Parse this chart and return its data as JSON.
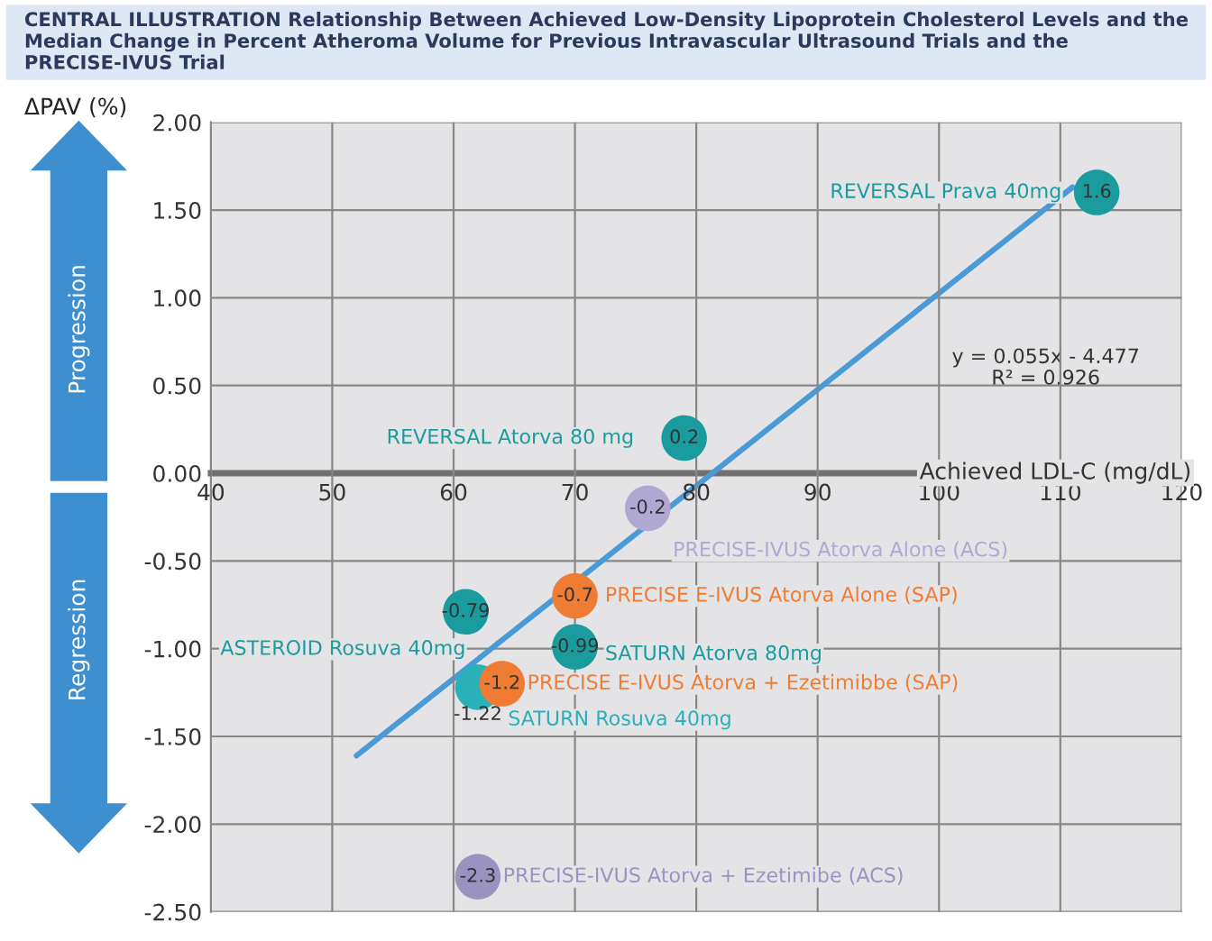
{
  "chart_data": {
    "type": "scatter",
    "title": "CENTRAL ILLUSTRATION Relationship Between Achieved Low-Density Lipoprotein Cholesterol Levels and the Median Change in Percent Atheroma Volume for Previous Intravascular Ultrasound Trials and the PRECISE-IVUS Trial",
    "xlabel": "Achieved LDL-C (mg/dL)",
    "ylabel": "ΔPAV (%)",
    "x": [
      113,
      79,
      76,
      70,
      61,
      70,
      62,
      64,
      62
    ],
    "series": [
      {
        "marker": "circle",
        "values": [
          1.6,
          0.2,
          -0.2,
          -0.7,
          -0.79,
          -0.99,
          -1.22,
          -1.2,
          -2.3
        ],
        "colors": [
          "#1a9c9e",
          "#1a9c9e",
          "#b0a8d2",
          "#f07c34",
          "#1a9c9e",
          "#1a9c9e",
          "#2ab0b8",
          "#f07c34",
          "#9a92c0"
        ],
        "value_labels": [
          "1.6",
          "0.2",
          "-0.2",
          "-0.7",
          "-0.79",
          "-0.99",
          "-1.22",
          "-1.2",
          "-2.3"
        ]
      },
      {
        "type": "line",
        "x": [
          52,
          111
        ],
        "values": [
          -1.61,
          1.63
        ],
        "color": "#4a9ad8"
      }
    ],
    "annotations": [
      {
        "text": "REVERSAL Prava 40mg",
        "x": 113,
        "y": 1.6
      },
      {
        "text": "REVERSAL Atorva 80 mg",
        "x": 79,
        "y": 0.2
      },
      {
        "text": "PRECISE-IVUS Atorva Alone (ACS)",
        "x": 76,
        "y": -0.2
      },
      {
        "text": "PRECISE E-IVUS Atorva Alone (SAP)",
        "x": 70,
        "y": -0.7
      },
      {
        "text": "ASTEROID Rosuva 40mg",
        "x": 61,
        "y": -0.79
      },
      {
        "text": "SATURN Atorva 80mg",
        "x": 70,
        "y": -0.99
      },
      {
        "text": "SATURN Rosuva 40mg",
        "x": 62,
        "y": -1.22
      },
      {
        "text": "PRECISE E-IVUS Atorva + Ezetimibbe (SAP)",
        "x": 64,
        "y": -1.2
      },
      {
        "text": "PRECISE-IVUS Atorva + Ezetimibe (ACS)",
        "x": 62,
        "y": -2.3
      },
      "y = 0.055x - 4.477",
      "R² = 0.926",
      "Progression",
      "Regression"
    ],
    "xlim": [
      40,
      120
    ],
    "xticks": [
      40,
      50,
      60,
      70,
      80,
      90,
      100,
      110,
      120
    ],
    "ylim": [
      -2.5,
      2.0
    ],
    "yticks": [
      {
        "value": -2.5,
        "label": "-2.50"
      },
      {
        "value": -2.0,
        "label": "-2.00"
      },
      {
        "value": -1.5,
        "label": "-1.50"
      },
      {
        "value": -1.0,
        "label": "-1.00"
      },
      {
        "value": -0.5,
        "label": "-0.50"
      },
      {
        "value": 0.0,
        "label": "0.00"
      },
      {
        "value": 0.5,
        "label": "0.50"
      },
      {
        "value": 1.0,
        "label": "1.00"
      },
      {
        "value": 1.5,
        "label": "1.50"
      },
      {
        "value": 2.0,
        "label": "2.00"
      }
    ],
    "grid": true
  }
}
